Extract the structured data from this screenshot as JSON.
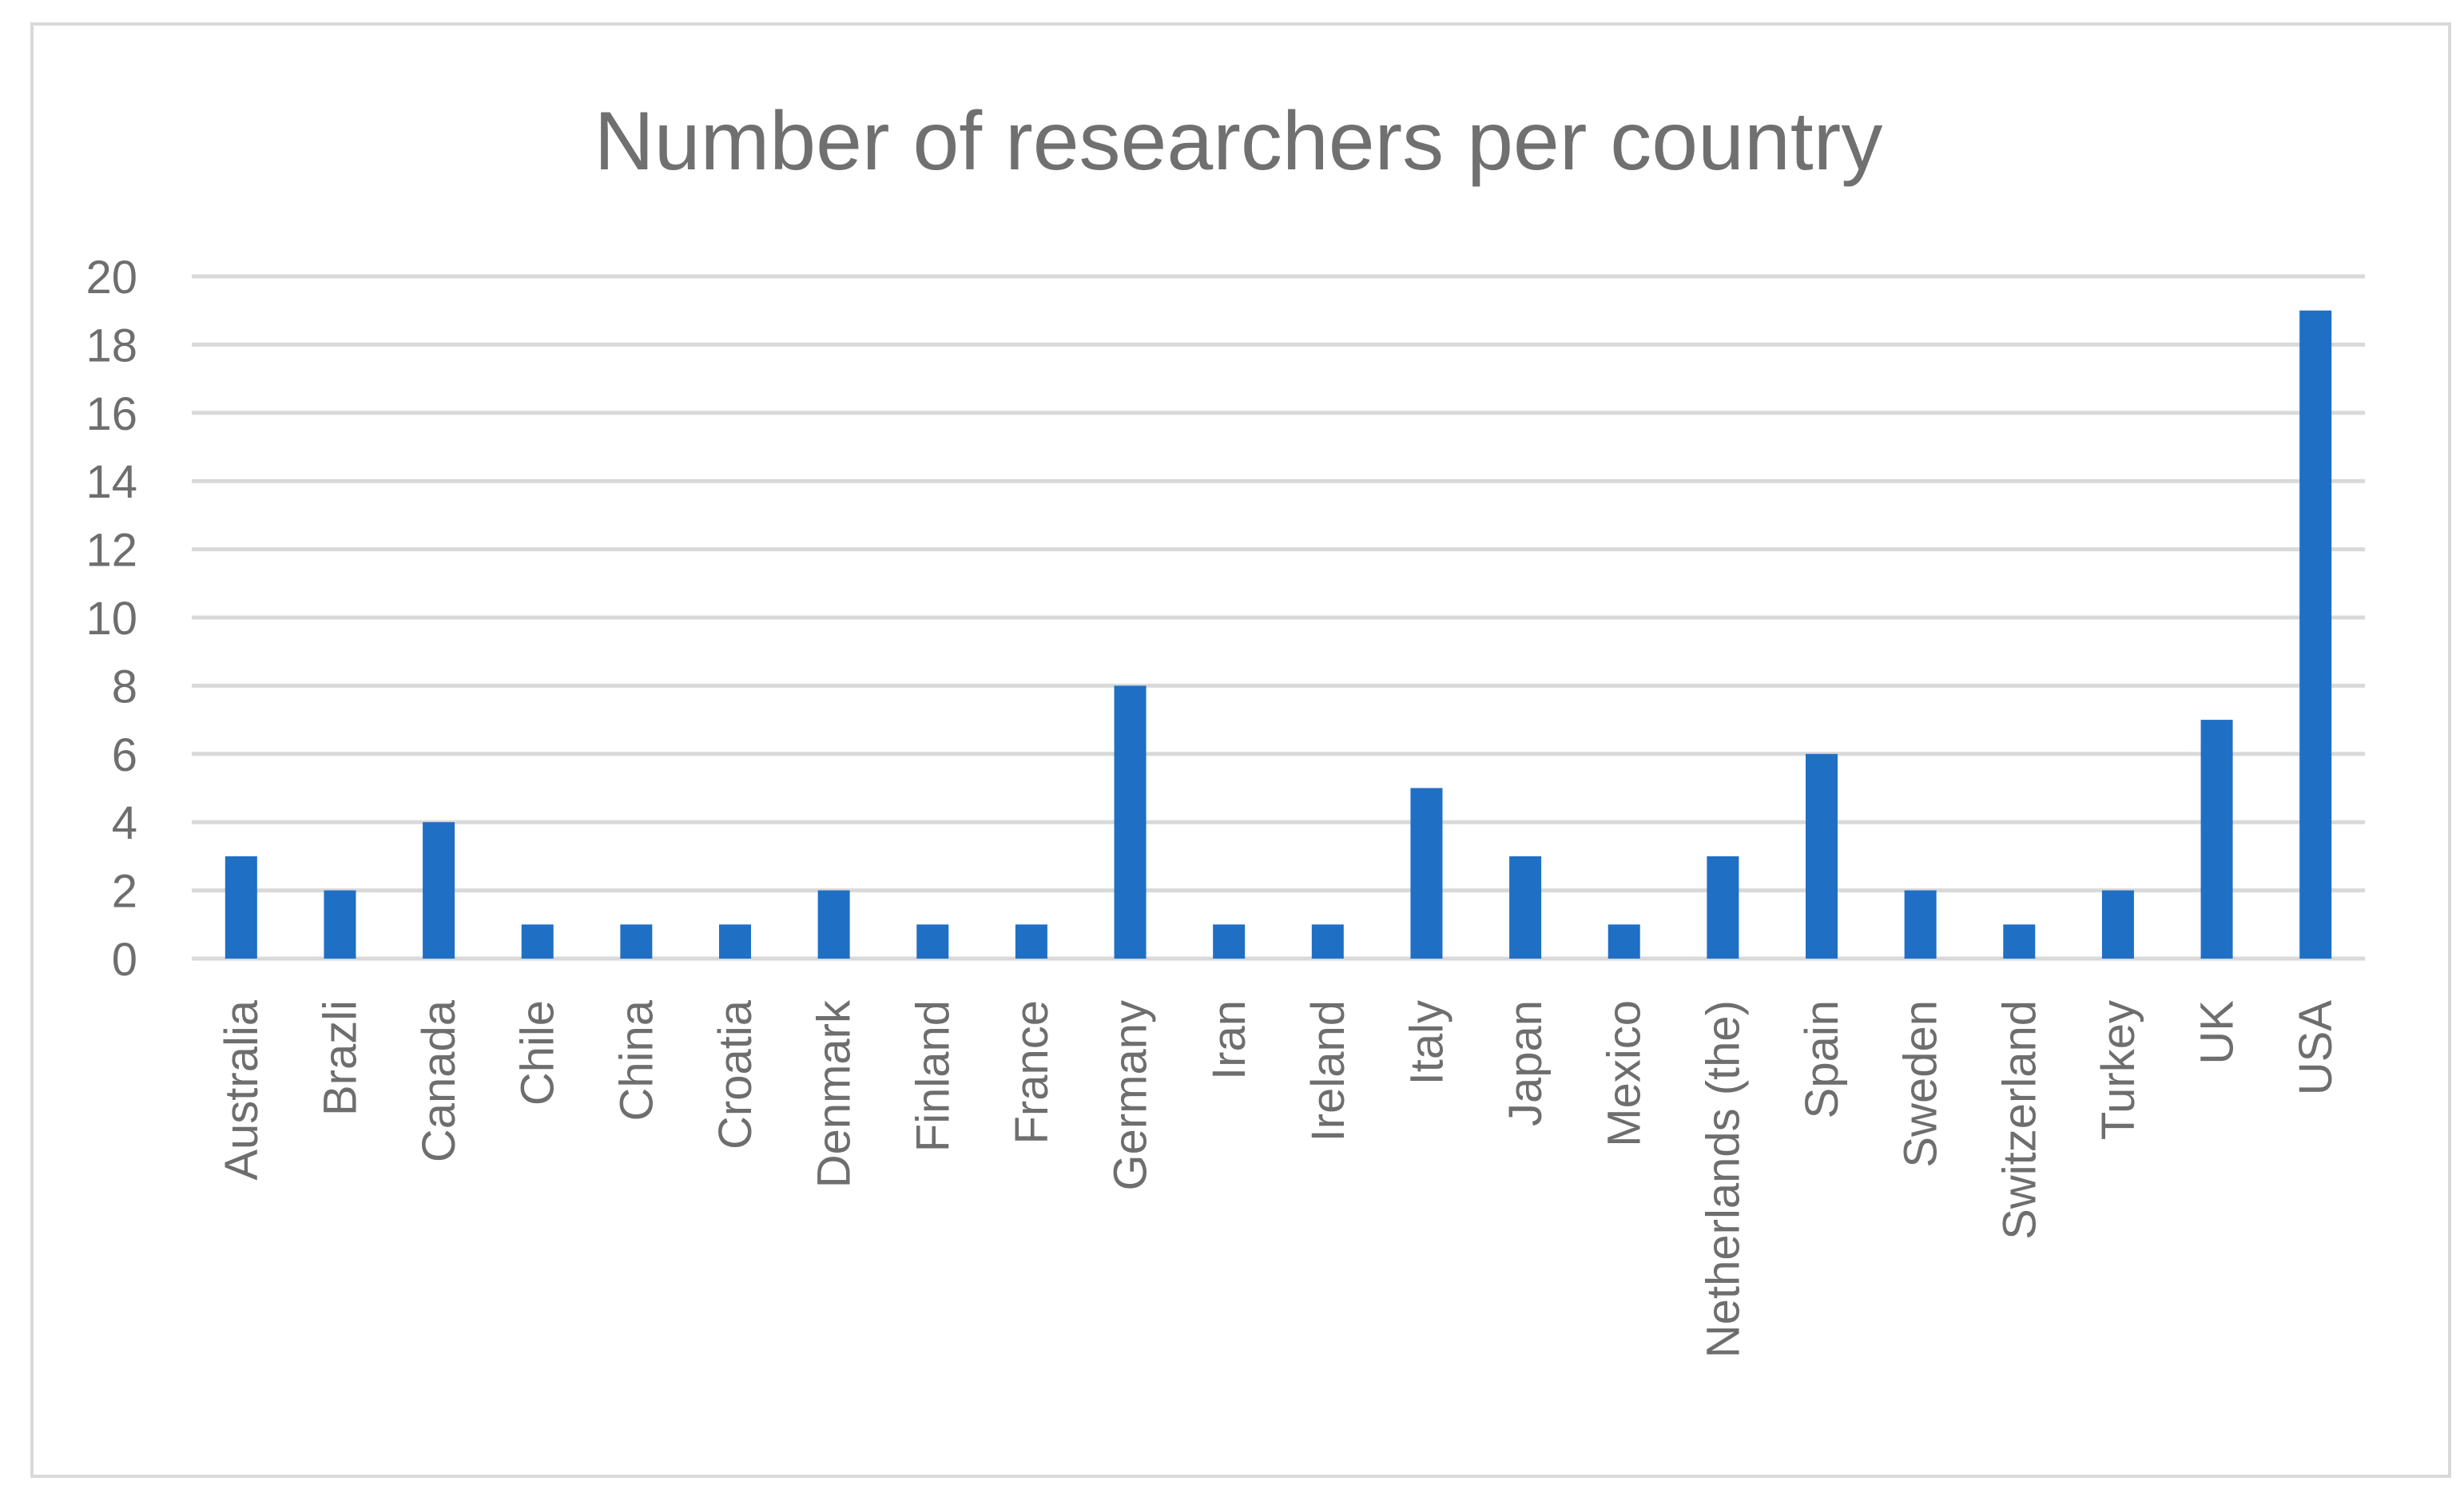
{
  "chart_data": {
    "type": "bar",
    "title": "Number of researchers per country",
    "xlabel": "",
    "ylabel": "",
    "ylim": [
      0,
      20
    ],
    "yticks": [
      0,
      2,
      4,
      6,
      8,
      10,
      12,
      14,
      16,
      18,
      20
    ],
    "grid": true,
    "legend": "none",
    "bar_color": "#1f6fc5",
    "categories": [
      "Australia",
      "Brazli",
      "Canada",
      "Chile",
      "China",
      "Croatia",
      "Denmark",
      "Finland",
      "France",
      "Germany",
      "Iran",
      "Ireland",
      "Italy",
      "Japan",
      "Mexico",
      "Netherlands (the)",
      "Spain",
      "Sweden",
      "Switzerland",
      "Turkey",
      "UK",
      "USA"
    ],
    "values": [
      3,
      2,
      4,
      1,
      1,
      1,
      2,
      1,
      1,
      8,
      1,
      1,
      5,
      3,
      1,
      3,
      6,
      2,
      1,
      2,
      7,
      19
    ]
  }
}
